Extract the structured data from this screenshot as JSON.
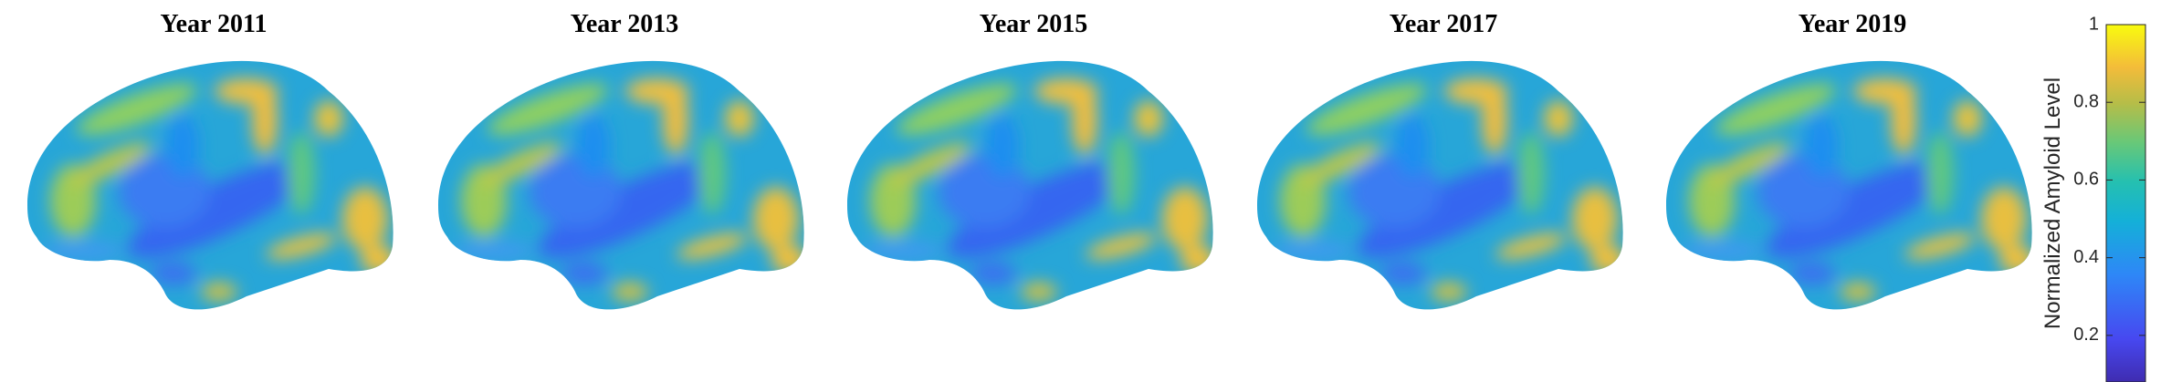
{
  "panels": [
    {
      "title": "Year 2011"
    },
    {
      "title": "Year 2013"
    },
    {
      "title": "Year 2015"
    },
    {
      "title": "Year 2017"
    },
    {
      "title": "Year 2019"
    }
  ],
  "colorbar": {
    "label": "Normalized Amyloid Level",
    "lim": [
      0.08,
      1
    ],
    "ticks": [
      0.2,
      0.4,
      0.6,
      0.8,
      1
    ]
  }
}
